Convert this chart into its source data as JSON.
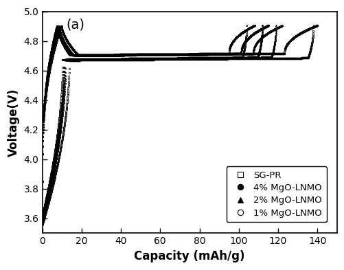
{
  "title": "(a)",
  "xlabel": "Capacity (mAh/g)",
  "ylabel": "Voltage(V)",
  "xlim": [
    0,
    150
  ],
  "ylim": [
    3.5,
    5.0
  ],
  "xticks": [
    0,
    20,
    40,
    60,
    80,
    100,
    120,
    140
  ],
  "yticks": [
    3.6,
    3.8,
    4.0,
    4.2,
    4.4,
    4.6,
    4.8,
    5.0
  ],
  "legend_labels": [
    "SG-PR",
    "4% MgO-LNMO",
    "2% MgO-LNMO",
    "1% MgO-LNMO"
  ],
  "legend_markers": [
    "s",
    "o",
    "^",
    "o"
  ],
  "legend_filled": [
    false,
    true,
    true,
    false
  ],
  "background_color": "white",
  "figure_size": [
    5.02,
    3.93
  ],
  "dpi": 100,
  "curves": [
    {
      "cap_charge": 108,
      "cap_discharge": 104,
      "v_plateau_ch": 4.705,
      "v_plateau_dis": 4.69,
      "v_top": 4.905,
      "v_bottom_ch": 3.85,
      "v_bottom_dis": 3.62,
      "label": "SG-PR"
    },
    {
      "cap_charge": 115,
      "cap_discharge": 112,
      "v_plateau_ch": 4.705,
      "v_plateau_dis": 4.69,
      "v_top": 4.905,
      "v_bottom_ch": 3.85,
      "v_bottom_dis": 3.6,
      "label": "4% MgO-LNMO"
    },
    {
      "cap_charge": 122,
      "cap_discharge": 119,
      "v_plateau_ch": 4.705,
      "v_plateau_dis": 4.69,
      "v_top": 4.905,
      "v_bottom_ch": 3.85,
      "v_bottom_dis": 3.58,
      "label": "2% MgO-LNMO"
    },
    {
      "cap_charge": 140,
      "cap_discharge": 138,
      "v_plateau_ch": 4.705,
      "v_plateau_dis": 4.685,
      "v_top": 4.905,
      "v_bottom_ch": 3.85,
      "v_bottom_dis": 3.56,
      "label": "1% MgO-LNMO"
    }
  ]
}
